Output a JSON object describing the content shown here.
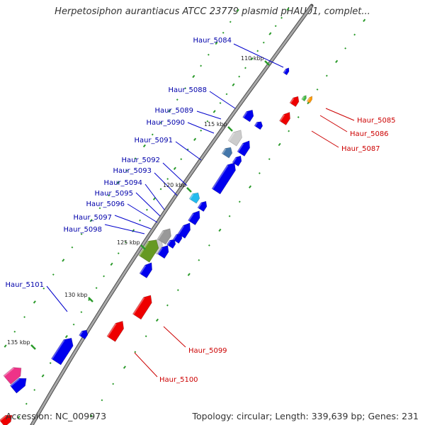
{
  "title": "Herpetosiphon aurantiacus ATCC 23779 plasmid pHAU01, complet...",
  "footer": {
    "accession": "Accession: NC_009973",
    "stats": "Topology: circular; Length: 339,639 bp; Genes: 231"
  },
  "colors": {
    "forward": "#0000ee",
    "reverse": "#ee0000",
    "backbone": "#8c8c8c",
    "gc_dots": "#2a9a2a",
    "label_forward": "#0000aa",
    "label_reverse": "#cc0000"
  },
  "ticks": [
    "110 kbp",
    "115 kbp",
    "120 kbp",
    "125 kbp",
    "130 kbp",
    "135 kbp"
  ],
  "genes": [
    {
      "id": "g5084",
      "label": "Haur_5084",
      "strand": "+"
    },
    {
      "id": "g5085",
      "label": "Haur_5085",
      "strand": "-"
    },
    {
      "id": "g5086",
      "label": "Haur_5086",
      "strand": "-"
    },
    {
      "id": "g5087",
      "label": "Haur_5087",
      "strand": "-"
    },
    {
      "id": "g5088",
      "label": "Haur_5088",
      "strand": "+"
    },
    {
      "id": "g5089",
      "label": "Haur_5089",
      "strand": "+"
    },
    {
      "id": "g5090",
      "label": "Haur_5090",
      "strand": "+"
    },
    {
      "id": "g5091",
      "label": "Haur_5091",
      "strand": "+"
    },
    {
      "id": "g5092",
      "label": "Haur_5092",
      "strand": "+"
    },
    {
      "id": "g5093",
      "label": "Haur_5093",
      "strand": "+"
    },
    {
      "id": "g5094",
      "label": "Haur_5094",
      "strand": "+"
    },
    {
      "id": "g5095",
      "label": "Haur_5095",
      "strand": "+"
    },
    {
      "id": "g5096",
      "label": "Haur_5096",
      "strand": "+"
    },
    {
      "id": "g5097",
      "label": "Haur_5097",
      "strand": "+"
    },
    {
      "id": "g5098",
      "label": "Haur_5098",
      "strand": "+"
    },
    {
      "id": "g5099",
      "label": "Haur_5099",
      "strand": "-"
    },
    {
      "id": "g5100",
      "label": "Haur_5100",
      "strand": "-"
    },
    {
      "id": "g5101",
      "label": "Haur_5101",
      "strand": "+"
    }
  ]
}
